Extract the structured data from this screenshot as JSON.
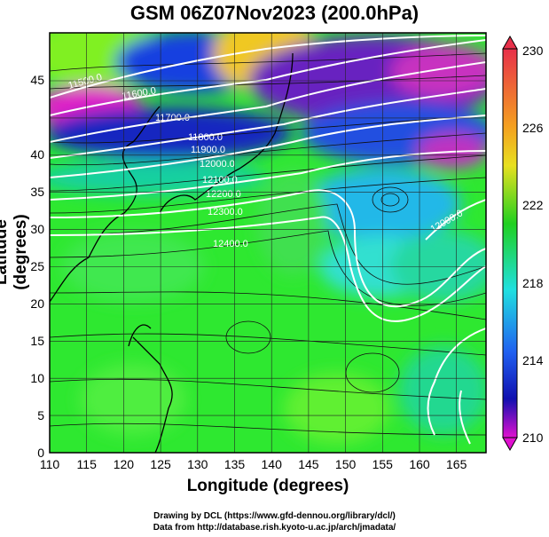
{
  "title": "GSM 06Z07Nov2023 (200.0hPa)",
  "x_axis": {
    "label": "Longitude (degrees)",
    "ticks": [
      "110",
      "115",
      "120",
      "125",
      "130",
      "135",
      "140",
      "145",
      "150",
      "155",
      "160",
      "165"
    ]
  },
  "y_axis": {
    "label": "Latitude  (degrees)",
    "ticks": [
      "0",
      "5",
      "10",
      "15",
      "20",
      "25",
      "30",
      "35",
      "40",
      "45"
    ]
  },
  "colorbar": {
    "ticks": [
      "230",
      "226",
      "222",
      "218",
      "214",
      "210"
    ],
    "colors": [
      "#e8304a",
      "#f4a020",
      "#e8e020",
      "#20d020",
      "#20e0e0",
      "#2060f0",
      "#1010b0",
      "#e010d0"
    ]
  },
  "contour_labels": [
    "11500.0",
    "11600.0",
    "11700.0",
    "11800.0",
    "11900.0",
    "12000.0",
    "12100.0",
    "12200.0",
    "12300.0",
    "12400.0",
    "12000.0"
  ],
  "credits": {
    "drawing": "Drawing by DCL (https://www.gfd-dennou.org/library/dcl/)",
    "data": "Data from http://database.rish.kyoto-u.ac.jp/arch/jmadata/"
  }
}
